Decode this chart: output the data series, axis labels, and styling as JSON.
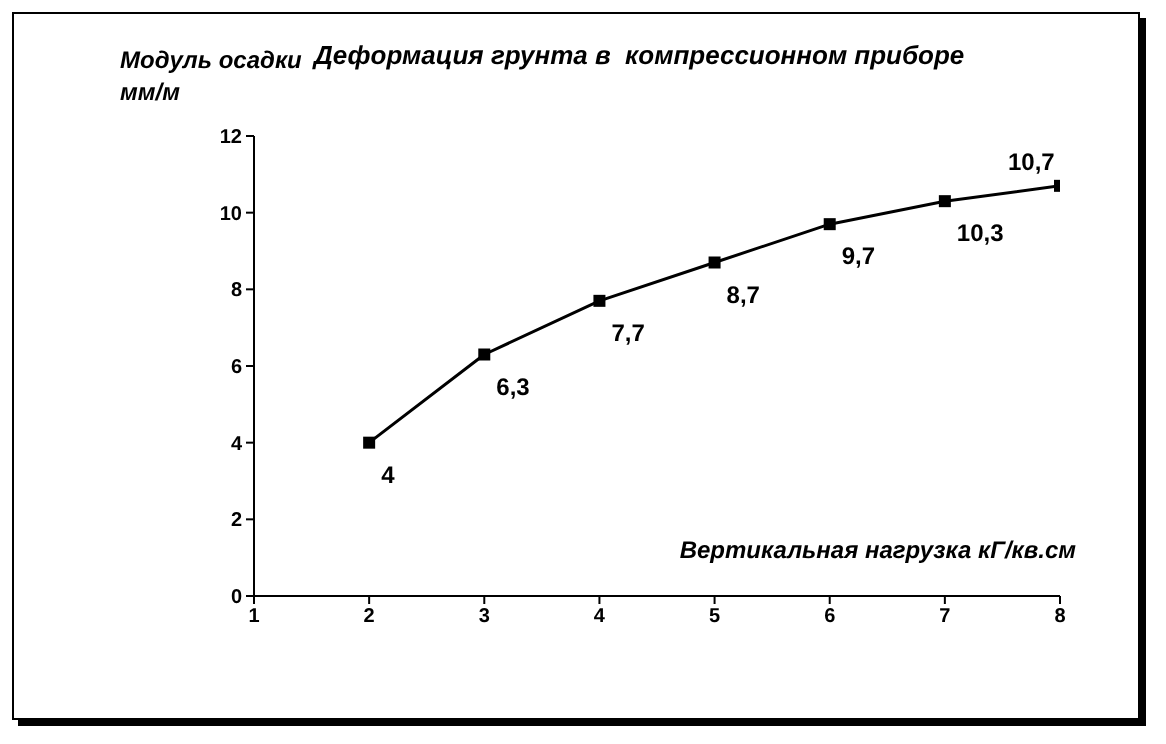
{
  "chart_data": {
    "type": "line",
    "title": "Деформация грунта в  компрессионном приборе",
    "ylabel": "Модуль осадки\nмм/м",
    "xlabel": "Вертикальная нагрузка кГ/кв.см",
    "x": [
      2,
      3,
      4,
      5,
      6,
      7,
      8
    ],
    "series": [
      {
        "color": "#000000",
        "values": [
          4,
          6.3,
          7.7,
          8.7,
          9.7,
          10.3,
          10.7
        ],
        "value_labels": [
          "4",
          "6,3",
          "7,7",
          "8,7",
          "9,7",
          "10,3",
          "10,7"
        ]
      }
    ],
    "xlim": [
      1,
      8
    ],
    "xticks": [
      1,
      2,
      3,
      4,
      5,
      6,
      7,
      8
    ],
    "ylim": [
      0,
      12
    ],
    "yticks": [
      0,
      2,
      4,
      6,
      8,
      10,
      12
    ],
    "grid": false,
    "legend": false,
    "marker": "square",
    "line_style": "solid"
  }
}
